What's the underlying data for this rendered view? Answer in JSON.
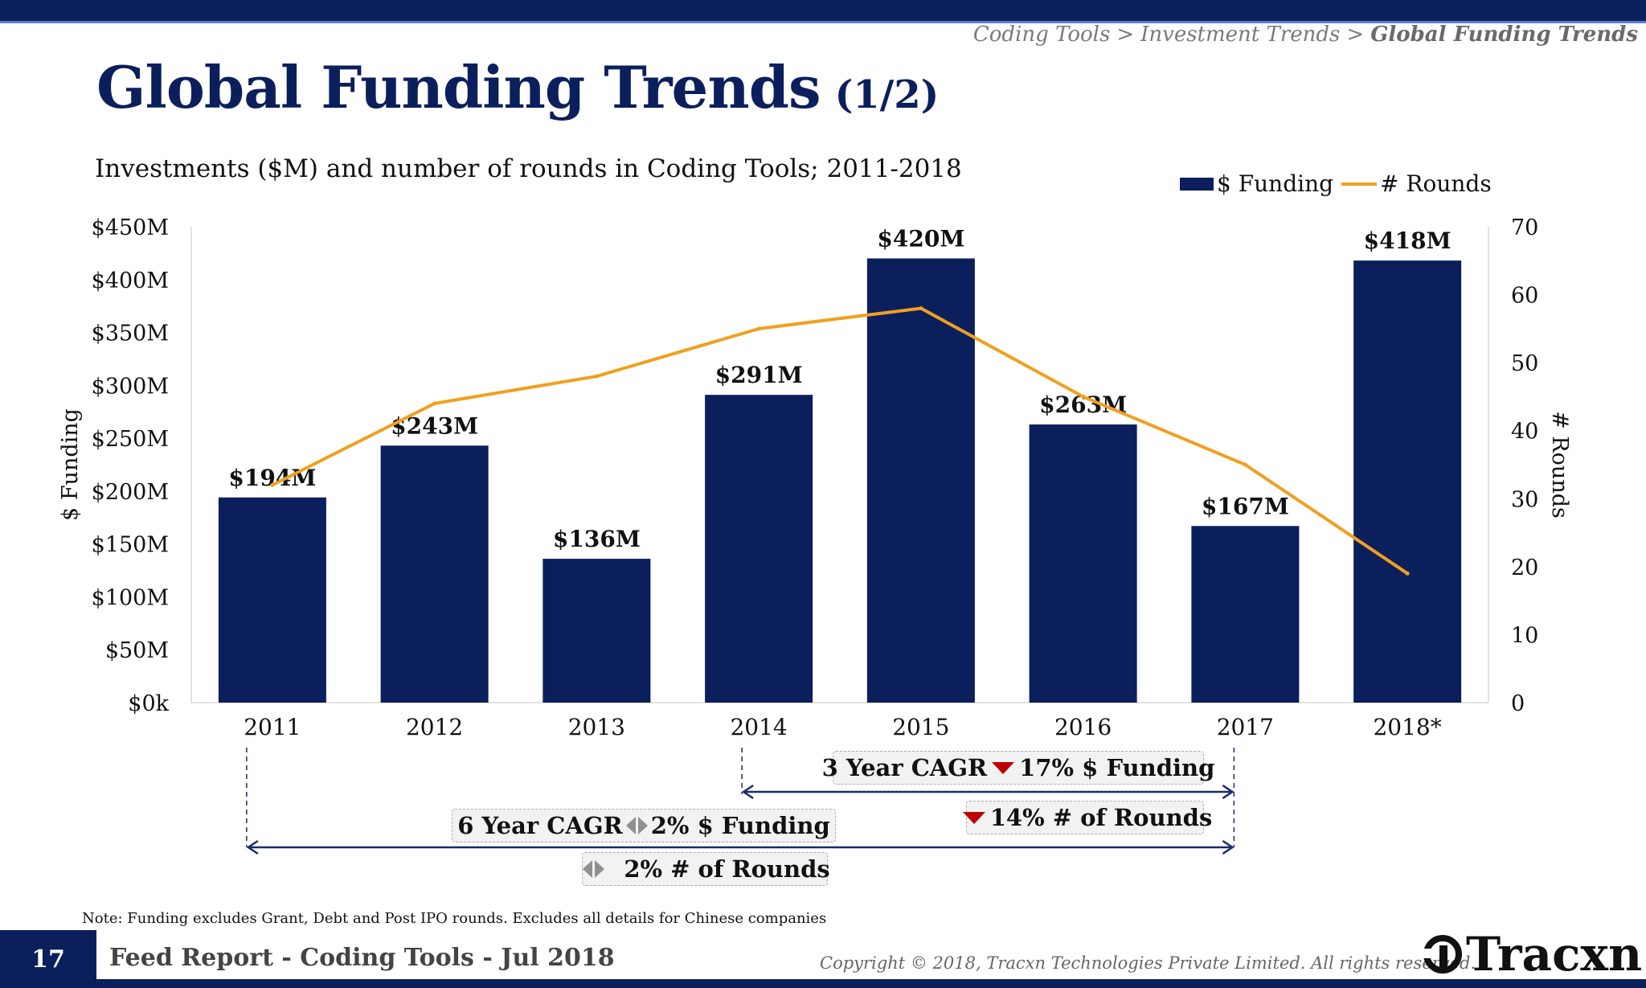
{
  "breadcrumb": {
    "items": [
      "Coding Tools",
      "Investment Trends"
    ],
    "current": "Global Funding Trends",
    "separator": ">"
  },
  "title": {
    "main": "Global Funding Trends",
    "part": "(1/2)"
  },
  "subtitle": "Investments ($M) and number of rounds in Coding Tools; 2011-2018",
  "legend": {
    "bar_label": "$ Funding",
    "line_label": "# Rounds"
  },
  "chart_data": {
    "type": "bar",
    "categories": [
      "2011",
      "2012",
      "2013",
      "2014",
      "2015",
      "2016",
      "2017",
      "2018*"
    ],
    "series": [
      {
        "name": "$ Funding",
        "type": "bar",
        "axis": "left",
        "values": [
          194,
          243,
          136,
          291,
          420,
          263,
          167,
          418
        ],
        "labels": [
          "$194M",
          "$243M",
          "$136M",
          "$291M",
          "$420M",
          "$263M",
          "$167M",
          "$418M"
        ]
      },
      {
        "name": "# Rounds",
        "type": "line",
        "axis": "right",
        "values": [
          32,
          44,
          48,
          55,
          58,
          45,
          35,
          19
        ]
      }
    ],
    "ylabel": "$ Funding",
    "ylabel_right": "# Rounds",
    "ylim": [
      0,
      450
    ],
    "ylim_right": [
      0,
      70
    ],
    "yticks": [
      "$0k",
      "$50M",
      "$100M",
      "$150M",
      "$200M",
      "$250M",
      "$300M",
      "$350M",
      "$400M",
      "$450M"
    ],
    "yticks_right": [
      "0",
      "10",
      "20",
      "30",
      "40",
      "50",
      "60",
      "70"
    ],
    "grid": false,
    "legend_position": "top-right",
    "colors": {
      "bar": "#0b1f5c",
      "line": "#f0a020"
    }
  },
  "cagr": {
    "three_year": {
      "label": "3 Year CAGR",
      "funding": "17% $ Funding",
      "rounds": "14% # of Rounds",
      "direction": "down"
    },
    "six_year": {
      "label": "6 Year CAGR",
      "funding": "2% $ Funding",
      "rounds": "2% # of Rounds",
      "direction": "flat"
    }
  },
  "note": "Note: Funding excludes Grant, Debt and Post IPO rounds. Excludes all details for Chinese companies",
  "footer": {
    "page_number": "17",
    "report_title": "Feed Report - Coding Tools - Jul 2018",
    "copyright": "Copyright © 2018, Tracxn Technologies Private Limited. All rights reserved.",
    "logo_text": "Tracxn"
  },
  "colors": {
    "brand_navy": "#0b1f5c",
    "line_orange": "#f0a020",
    "down_red": "#c00000"
  }
}
